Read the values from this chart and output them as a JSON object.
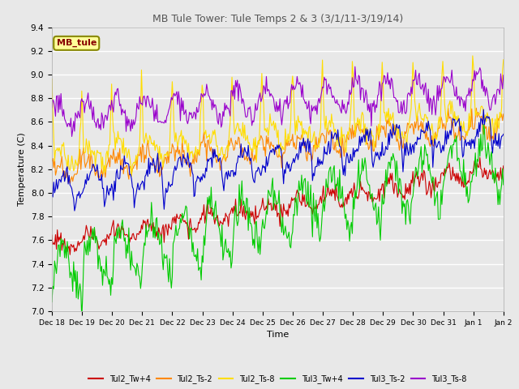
{
  "title": "MB Tule Tower: Tule Temps 2 & 3 (3/1/11-3/19/14)",
  "xlabel": "Time",
  "ylabel": "Temperature (C)",
  "ylim": [
    7.0,
    9.4
  ],
  "yticks": [
    7.0,
    7.2,
    7.4,
    7.6,
    7.8,
    8.0,
    8.2,
    8.4,
    8.6,
    8.8,
    9.0,
    9.2,
    9.4
  ],
  "xtick_labels": [
    "Dec 18",
    "Dec 19",
    "Dec 20",
    "Dec 21",
    "Dec 22",
    "Dec 23",
    "Dec 24",
    "Dec 25",
    "Dec 26",
    "Dec 27",
    "Dec 28",
    "Dec 29",
    "Dec 30",
    "Dec 31",
    "Jan 1",
    "Jan 2"
  ],
  "colors": {
    "Tul2_Tw+4": "#cc0000",
    "Tul2_Ts-2": "#ff8800",
    "Tul2_Ts-8": "#ffdd00",
    "Tul3_Tw+4": "#00cc00",
    "Tul3_Ts-2": "#0000cc",
    "Tul3_Ts-8": "#9900cc"
  },
  "legend_box_color": "#ffff99",
  "legend_box_edge": "#888800",
  "legend_text": "MB_tule",
  "legend_text_color": "#880000",
  "background_color": "#e8e8e8",
  "plot_bg_color": "#e8e8e8"
}
